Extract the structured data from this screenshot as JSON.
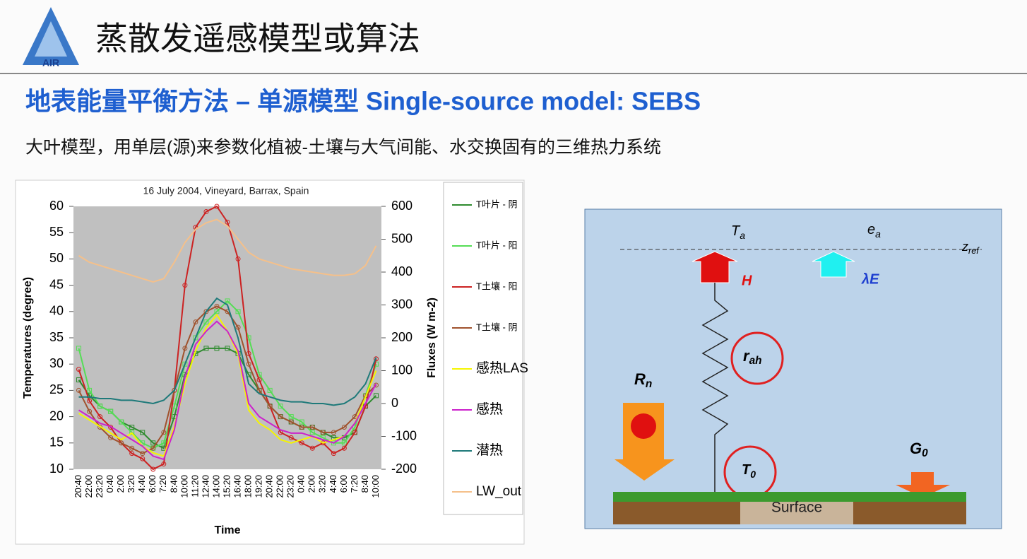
{
  "header": {
    "logo": "AIR",
    "title": "蒸散发遥感模型或算法",
    "subtitle": "地表能量平衡方法 – 单源模型 Single-source model: SEBS",
    "description": "大叶模型，用单层(源)来参数化植被-土壤与大气间能、水交换固有的三维热力系统"
  },
  "chart_data": {
    "type": "line",
    "title": "16 July 2004, Vineyard, Barrax, Spain",
    "x_label": "Time",
    "y_label": "Temperatures (degree)",
    "y2_label": "Fluxes (W m-2)",
    "categories": [
      "20:40",
      "22:00",
      "23:20",
      "0:40",
      "2:00",
      "3:20",
      "4:40",
      "6:00",
      "7:20",
      "8:40",
      "10:00",
      "11:20",
      "12:40",
      "14:00",
      "15:20",
      "16:40",
      "18:00",
      "19:20",
      "20:40",
      "22:00",
      "23:20",
      "0:40",
      "2:00",
      "3:20",
      "4:40",
      "6:00",
      "7:20",
      "8:40",
      "10:00"
    ],
    "ylim": [
      10,
      60
    ],
    "yticks": [
      10,
      15,
      20,
      25,
      30,
      35,
      40,
      45,
      50,
      55,
      60
    ],
    "y2lim": [
      -200,
      600
    ],
    "y2ticks": [
      -200,
      -100,
      0,
      100,
      200,
      300,
      400,
      500,
      600
    ],
    "series": [
      {
        "name": "T叶片 - 阴",
        "color": "#2e8b2e",
        "marker": "square",
        "values": [
          27,
          24,
          22,
          21,
          19,
          18,
          17,
          15,
          14,
          20,
          28,
          32,
          33,
          33,
          33,
          32,
          28,
          25,
          22,
          20,
          19,
          18,
          18,
          17,
          16,
          16,
          17,
          22,
          24
        ]
      },
      {
        "name": "T叶片 - 阳",
        "color": "#55dd55",
        "marker": "square",
        "values": [
          33,
          25,
          22,
          21,
          19,
          17,
          15,
          14,
          15,
          22,
          30,
          35,
          38,
          40,
          42,
          40,
          35,
          28,
          25,
          22,
          20,
          19,
          17,
          16,
          15,
          15,
          18,
          24,
          30
        ]
      },
      {
        "name": "T土壤 - 阳",
        "color": "#cc2222",
        "marker": "circle",
        "values": [
          29,
          23,
          20,
          18,
          15,
          13,
          12,
          10,
          11,
          25,
          45,
          56,
          59,
          60,
          57,
          50,
          32,
          27,
          22,
          17,
          16,
          15,
          14,
          15,
          13,
          14,
          17,
          22,
          31
        ]
      },
      {
        "name": "T土壤 - 阴",
        "color": "#a0522d",
        "marker": "circle",
        "values": [
          25,
          21,
          18,
          16,
          15,
          14,
          13,
          14,
          17,
          25,
          33,
          38,
          40,
          41,
          40,
          37,
          30,
          25,
          22,
          20,
          19,
          18,
          18,
          17,
          17,
          18,
          20,
          24,
          26
        ]
      },
      {
        "name": "感热LAS",
        "color": "#f5f500",
        "axis": "y2",
        "values": [
          -30,
          -50,
          -70,
          -90,
          -110,
          -90,
          -130,
          -150,
          -160,
          -70,
          60,
          160,
          230,
          270,
          220,
          150,
          -20,
          -60,
          -80,
          -110,
          -120,
          -110,
          -100,
          -120,
          -110,
          -100,
          -60,
          20,
          100
        ]
      },
      {
        "name": "感热",
        "color": "#cc22cc",
        "axis": "y2",
        "values": [
          -20,
          -40,
          -60,
          -70,
          -90,
          -110,
          -130,
          -160,
          -170,
          -80,
          80,
          180,
          220,
          250,
          220,
          160,
          0,
          -40,
          -60,
          -80,
          -90,
          -90,
          -100,
          -110,
          -120,
          -100,
          -60,
          0,
          60
        ]
      },
      {
        "name": "潜热",
        "color": "#1f7a7a",
        "axis": "y2",
        "values": [
          20,
          20,
          15,
          15,
          10,
          10,
          5,
          0,
          10,
          40,
          120,
          200,
          280,
          320,
          300,
          200,
          60,
          30,
          20,
          10,
          5,
          5,
          0,
          0,
          -5,
          0,
          20,
          60,
          140
        ]
      },
      {
        "name": "LW_out",
        "color": "#f5c08a",
        "axis": "y2",
        "values": [
          450,
          430,
          420,
          410,
          400,
          390,
          380,
          370,
          380,
          430,
          490,
          530,
          550,
          560,
          540,
          500,
          460,
          440,
          430,
          420,
          410,
          405,
          400,
          395,
          390,
          390,
          395,
          420,
          480
        ]
      }
    ]
  },
  "diagram": {
    "ta": {
      "main": "T",
      "sub": "a"
    },
    "ea": {
      "main": "e",
      "sub": "a"
    },
    "zref": {
      "main": "z",
      "sub": "ref"
    },
    "h": "H",
    "le": "λE",
    "rah": {
      "main": "r",
      "sub": "ah"
    },
    "rn": {
      "main": "R",
      "sub": "n"
    },
    "t0": {
      "main": "T",
      "sub": "0"
    },
    "g0": {
      "main": "G",
      "sub": "0"
    },
    "surface": "Surface"
  }
}
